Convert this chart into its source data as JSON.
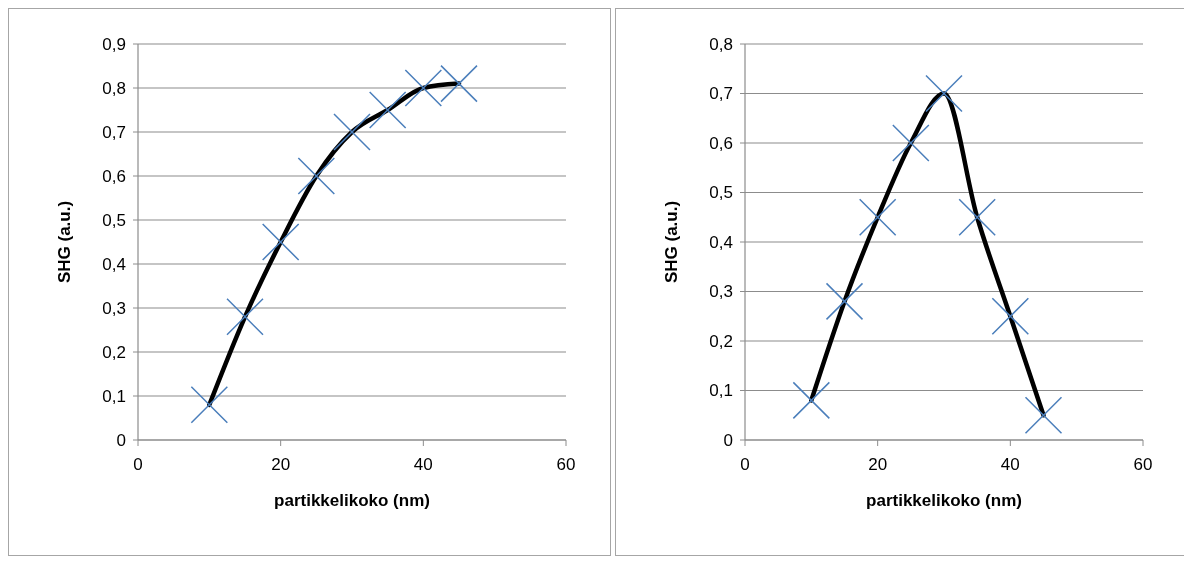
{
  "chart_data": [
    {
      "type": "line",
      "xlabel": "partikkelikoko (nm)",
      "ylabel": "SHG (a.u.)",
      "xlim": [
        0,
        60
      ],
      "xticks": [
        0,
        20,
        40,
        60
      ],
      "ylim": [
        0,
        0.9
      ],
      "yticks": [
        0,
        {
          "value": 0.1,
          "label": "0,1"
        },
        {
          "value": 0.2,
          "label": "0,2"
        },
        {
          "value": 0.3,
          "label": "0,3"
        },
        {
          "value": 0.4,
          "label": "0,4"
        },
        {
          "value": 0.5,
          "label": "0,5"
        },
        {
          "value": 0.6,
          "label": "0,6"
        },
        {
          "value": 0.7,
          "label": "0,7"
        },
        {
          "value": 0.8,
          "label": "0,8"
        },
        {
          "value": 0.9,
          "label": "0,9"
        }
      ],
      "grid": "y",
      "x": [
        10,
        15,
        20,
        25,
        30,
        35,
        40,
        45
      ],
      "series": [
        {
          "color": "#000000",
          "marker": "cross",
          "colors": [
            "#4a7ebb",
            "#4a7ebb",
            "#4a7ebb",
            "#4a7ebb",
            "#4a7ebb",
            "#4a7ebb",
            "#4a7ebb",
            "#4a7ebb"
          ],
          "values": [
            0.08,
            0.28,
            0.45,
            0.6,
            0.7,
            0.75,
            0.8,
            0.81
          ]
        }
      ]
    },
    {
      "type": "line",
      "xlabel": "partikkelikoko (nm)",
      "ylabel": "SHG (a.u.)",
      "xlim": [
        0,
        60
      ],
      "xticks": [
        0,
        20,
        40,
        60
      ],
      "ylim": [
        0,
        0.8
      ],
      "yticks": [
        0,
        {
          "value": 0.1,
          "label": "0,1"
        },
        {
          "value": 0.2,
          "label": "0,2"
        },
        {
          "value": 0.3,
          "label": "0,3"
        },
        {
          "value": 0.4,
          "label": "0,4"
        },
        {
          "value": 0.5,
          "label": "0,5"
        },
        {
          "value": 0.6,
          "label": "0,6"
        },
        {
          "value": 0.7,
          "label": "0,7"
        },
        {
          "value": 0.8,
          "label": "0,8"
        }
      ],
      "grid": "y",
      "x": [
        10,
        15,
        20,
        25,
        30,
        35,
        40,
        45
      ],
      "series": [
        {
          "color": "#000000",
          "marker": "cross",
          "colors": [
            "#4a7ebb",
            "#4a7ebb",
            "#4a7ebb",
            "#4a7ebb",
            "#4a7ebb",
            "#4a7ebb",
            "#4a7ebb",
            "#4a7ebb"
          ],
          "values": [
            0.08,
            0.28,
            0.45,
            0.6,
            0.7,
            0.45,
            0.25,
            0.05
          ]
        }
      ]
    }
  ]
}
